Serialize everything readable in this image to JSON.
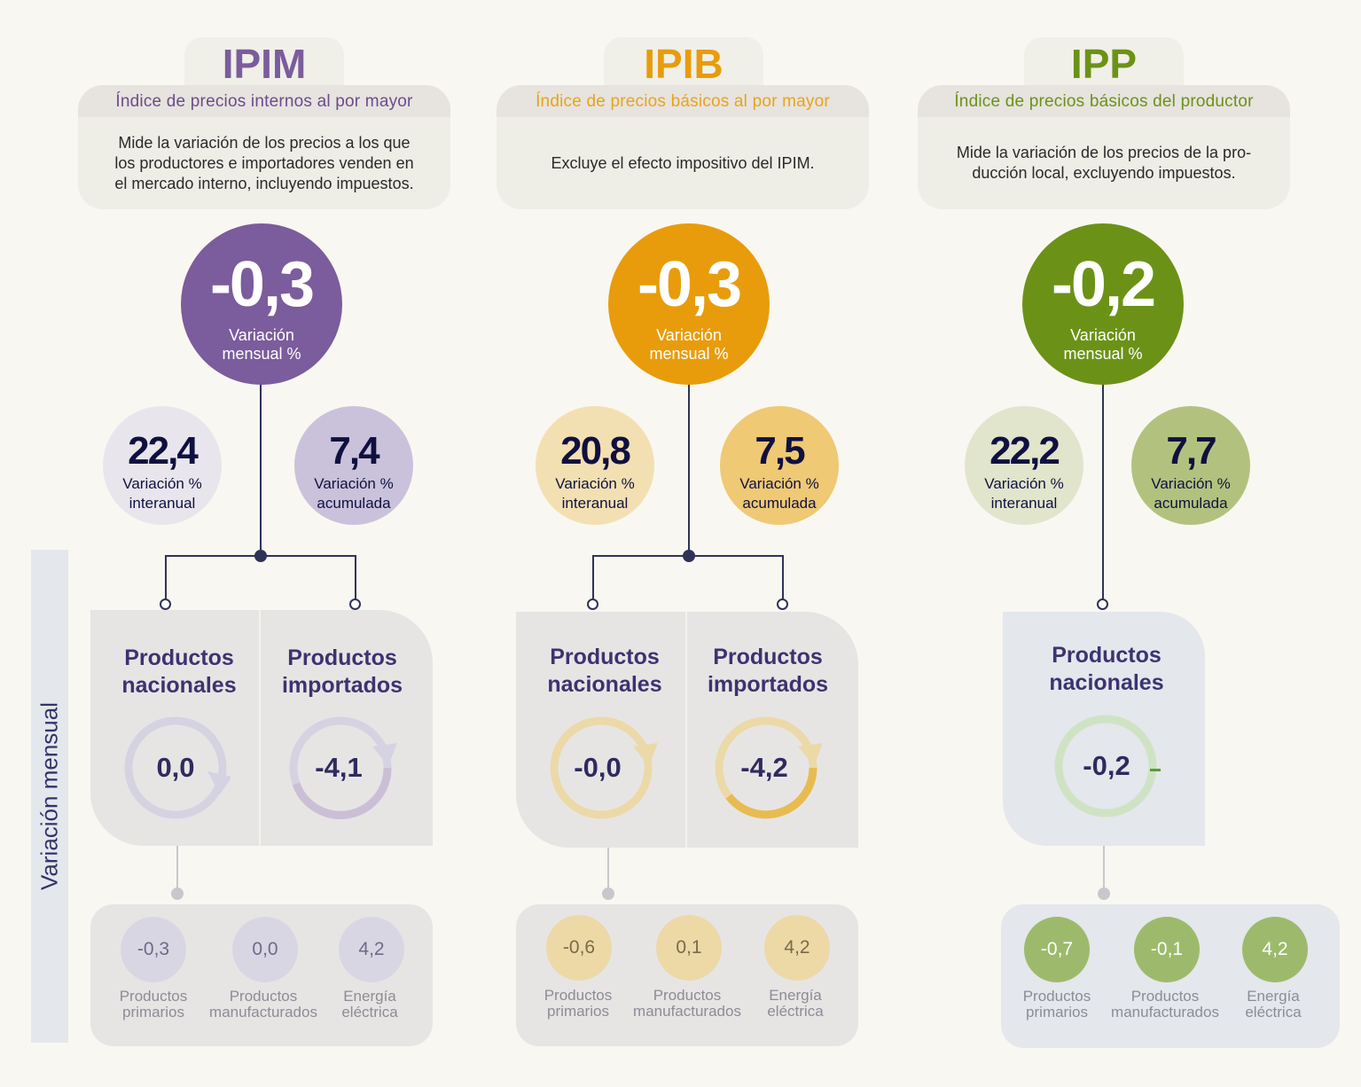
{
  "side_label": "Variación mensual",
  "indices": [
    {
      "code": "IPIM",
      "subtitle": "Índice de precios internos al por mayor",
      "description": "Mide la variación de los precios a los que\nlos productores e importadores venden en\nel mercado interno, incluyendo impuestos.",
      "main_value": "-0,3",
      "main_label": "Variación\nmensual %",
      "interanual_value": "22,4",
      "interanual_label": "Variación %\ninteranual",
      "acumulada_value": "7,4",
      "acumulada_label": "Variación %\nacumulada",
      "nacionales_title": "Productos\nnacionales",
      "nacionales_value": "0,0",
      "importados_title": "Productos\nimportados",
      "importados_value": "-4,1",
      "sub_values": [
        "-0,3",
        "0,0",
        "4,2"
      ],
      "sub_labels": [
        "Productos\nprimarios",
        "Productos\nmanufacturados",
        "Energía\neléctrica"
      ],
      "colors": {
        "accent": "#7b5c9c",
        "light1": "#e8e6ec",
        "light2": "#c9c2da",
        "ring": "#d5d3e2",
        "ring_fill": "#cbbfd6",
        "small": "#d9d6e4"
      }
    },
    {
      "code": "IPIB",
      "subtitle": "Índice de precios básicos al por mayor",
      "description": "Excluye el efecto impositivo del IPIM.",
      "main_value": "-0,3",
      "main_label": "Variación\nmensual %",
      "interanual_value": "20,8",
      "interanual_label": "Variación %\ninteranual",
      "acumulada_value": "7,5",
      "acumulada_label": "Variación %\nacumulada",
      "nacionales_title": "Productos\nnacionales",
      "nacionales_value": "-0,0",
      "importados_title": "Productos\nimportados",
      "importados_value": "-4,2",
      "sub_values": [
        "-0,6",
        "0,1",
        "4,2"
      ],
      "sub_labels": [
        "Productos\nprimarios",
        "Productos\nmanufacturados",
        "Energía\neléctrica"
      ],
      "colors": {
        "accent": "#e89c0c",
        "light1": "#f3e0b2",
        "light2": "#efc974",
        "ring": "#ecd9a8",
        "ring_fill": "#e8bb52",
        "small": "#ecd9a6"
      }
    },
    {
      "code": "IPP",
      "subtitle": "Índice de precios básicos del productor",
      "description": "Mide la variación de los precios de la pro-\nducción local, excluyendo impuestos.",
      "main_value": "-0,2",
      "main_label": "Variación\nmensual %",
      "interanual_value": "22,2",
      "interanual_label": "Variación %\ninteranual",
      "acumulada_value": "7,7",
      "acumulada_label": "Variación %\nacumulada",
      "nacionales_title": "Productos\nnacionales",
      "nacionales_value": "-0,2",
      "sub_values": [
        "-0,7",
        "-0,1",
        "4,2"
      ],
      "sub_labels": [
        "Productos\nprimarios",
        "Productos\nmanufacturados",
        "Energía\neléctrica"
      ],
      "colors": {
        "accent": "#6b9216",
        "light1": "#e1e5cc",
        "light2": "#b2c27e",
        "ring": "#cfe3c4",
        "ring_fill": "#7eb45a",
        "small": "#9dba6c"
      }
    }
  ]
}
